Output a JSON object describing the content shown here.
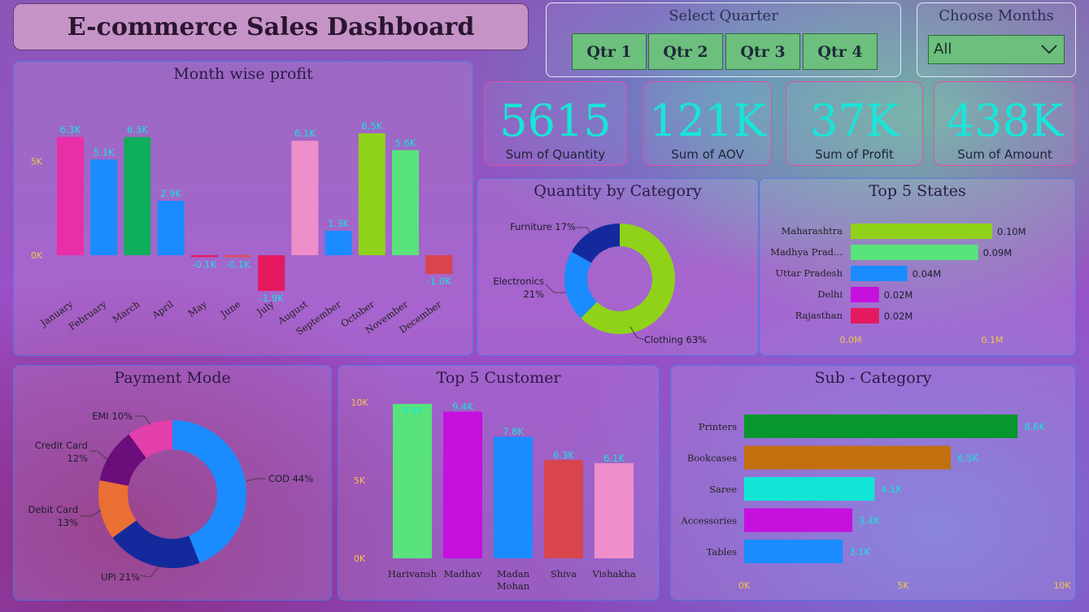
{
  "header": {
    "title": "E-commerce Sales Dashboard"
  },
  "quarter_filter": {
    "label": "Select Quarter",
    "buttons": [
      "Qtr 1",
      "Qtr 2",
      "Qtr 3",
      "Qtr 4"
    ]
  },
  "month_filter": {
    "label": "Choose Months",
    "selected": "All"
  },
  "kpis": [
    {
      "value": "5615",
      "label": "Sum of Quantity"
    },
    {
      "value": "121K",
      "label": "Sum of AOV"
    },
    {
      "value": "37K",
      "label": "Sum of Profit"
    },
    {
      "value": "438K",
      "label": "Sum of Amount"
    }
  ],
  "colors": {
    "value_label": "#17e6d9",
    "axis_tick": "#f3c548"
  },
  "chart_data": [
    {
      "id": "month_profit",
      "type": "bar",
      "title": "Month wise profit",
      "categories": [
        "January",
        "February",
        "March",
        "April",
        "May",
        "June",
        "July",
        "August",
        "September",
        "October",
        "November",
        "December"
      ],
      "values": [
        6300,
        5100,
        6300,
        2900,
        -100,
        -100,
        -1900,
        6100,
        1300,
        6500,
        5600,
        -1000
      ],
      "data_labels": [
        "6.3K",
        "5.1K",
        "6.3K",
        "2.9K",
        "-0.1K",
        "-0.1K",
        "-1.9K",
        "6.1K",
        "1.3K",
        "6.5K",
        "5.6K",
        "-1.0K"
      ],
      "colors": [
        "#e92fa7",
        "#1a8cff",
        "#0fae5c",
        "#1a8cff",
        "#e5195f",
        "#e05050",
        "#e5195f",
        "#ee8fcb",
        "#1a8cff",
        "#8fd219",
        "#59e37b",
        "#d9454c"
      ],
      "yticks": [
        {
          "value": 0,
          "label": "0K"
        },
        {
          "value": 5000,
          "label": "5K"
        }
      ],
      "ylim": [
        -2000,
        7000
      ]
    },
    {
      "id": "quantity_category",
      "type": "pie",
      "title": "Quantity by Category",
      "slices": [
        {
          "name": "Clothing",
          "value": 63,
          "label": "Clothing 63%",
          "color": "#8fd219"
        },
        {
          "name": "Electronics",
          "value": 21,
          "label": "Electronics 21%",
          "color": "#1a8cff"
        },
        {
          "name": "Furniture",
          "value": 17,
          "label": "Furniture 17%",
          "color": "#142a9c"
        }
      ]
    },
    {
      "id": "top_states",
      "type": "bar",
      "orientation": "horizontal",
      "title": "Top 5 States",
      "categories": [
        "Maharashtra",
        "Madhya Prad...",
        "Uttar Pradesh",
        "Delhi",
        "Rajasthan"
      ],
      "values": [
        0.1,
        0.09,
        0.04,
        0.02,
        0.02
      ],
      "data_labels": [
        "0.10M",
        "0.09M",
        "0.04M",
        "0.02M",
        "0.02M"
      ],
      "colors": [
        "#8fd219",
        "#59e37b",
        "#1a8cff",
        "#c510de",
        "#e5195f"
      ],
      "xticks": [
        {
          "value": 0,
          "label": "0.0M"
        },
        {
          "value": 0.1,
          "label": "0.1M"
        }
      ],
      "xlim": [
        0,
        0.11
      ]
    },
    {
      "id": "payment_mode",
      "type": "pie",
      "title": "Payment Mode",
      "slices": [
        {
          "name": "COD",
          "value": 44,
          "label": "COD 44%",
          "color": "#1a8cff"
        },
        {
          "name": "UPI",
          "value": 21,
          "label": "UPI 21%",
          "color": "#142a9c"
        },
        {
          "name": "Debit Card",
          "value": 13,
          "label": "Debit Card 13%",
          "color": "#ea6f34"
        },
        {
          "name": "Credit Card",
          "value": 12,
          "label": "Credit Card 12%",
          "color": "#6b0d7a"
        },
        {
          "name": "EMI",
          "value": 10,
          "label": "EMI 10%",
          "color": "#e23fab"
        }
      ]
    },
    {
      "id": "top_customers",
      "type": "bar",
      "title": "Top 5 Customer",
      "categories": [
        "Harivansh",
        "Madhav",
        "Madan Mohan",
        "Shiva",
        "Vishakha"
      ],
      "values": [
        9900,
        9400,
        7800,
        6300,
        6100
      ],
      "data_labels": [
        "9.9K",
        "9.4K",
        "7.8K",
        "6.3K",
        "6.1K"
      ],
      "colors": [
        "#59e37b",
        "#c510de",
        "#1a8cff",
        "#d9454c",
        "#ee8fcb"
      ],
      "yticks": [
        {
          "value": 0,
          "label": "0K"
        },
        {
          "value": 5000,
          "label": "5K"
        },
        {
          "value": 10000,
          "label": "10K"
        }
      ],
      "ylim": [
        0,
        10000
      ]
    },
    {
      "id": "sub_category",
      "type": "bar",
      "orientation": "horizontal",
      "title": "Sub - Category",
      "categories": [
        "Printers",
        "Bookcases",
        "Saree",
        "Accessories",
        "Tables"
      ],
      "values": [
        8600,
        6500,
        4100,
        3400,
        3100
      ],
      "data_labels": [
        "8.6K",
        "6.5K",
        "4.1K",
        "3.4K",
        "3.1K"
      ],
      "colors": [
        "#08962e",
        "#c26f0e",
        "#11e6d6",
        "#c510de",
        "#1a8cff"
      ],
      "xticks": [
        {
          "value": 0,
          "label": "0K"
        },
        {
          "value": 5000,
          "label": "5K"
        },
        {
          "value": 10000,
          "label": "10K"
        }
      ],
      "xlim": [
        0,
        10000
      ]
    }
  ]
}
